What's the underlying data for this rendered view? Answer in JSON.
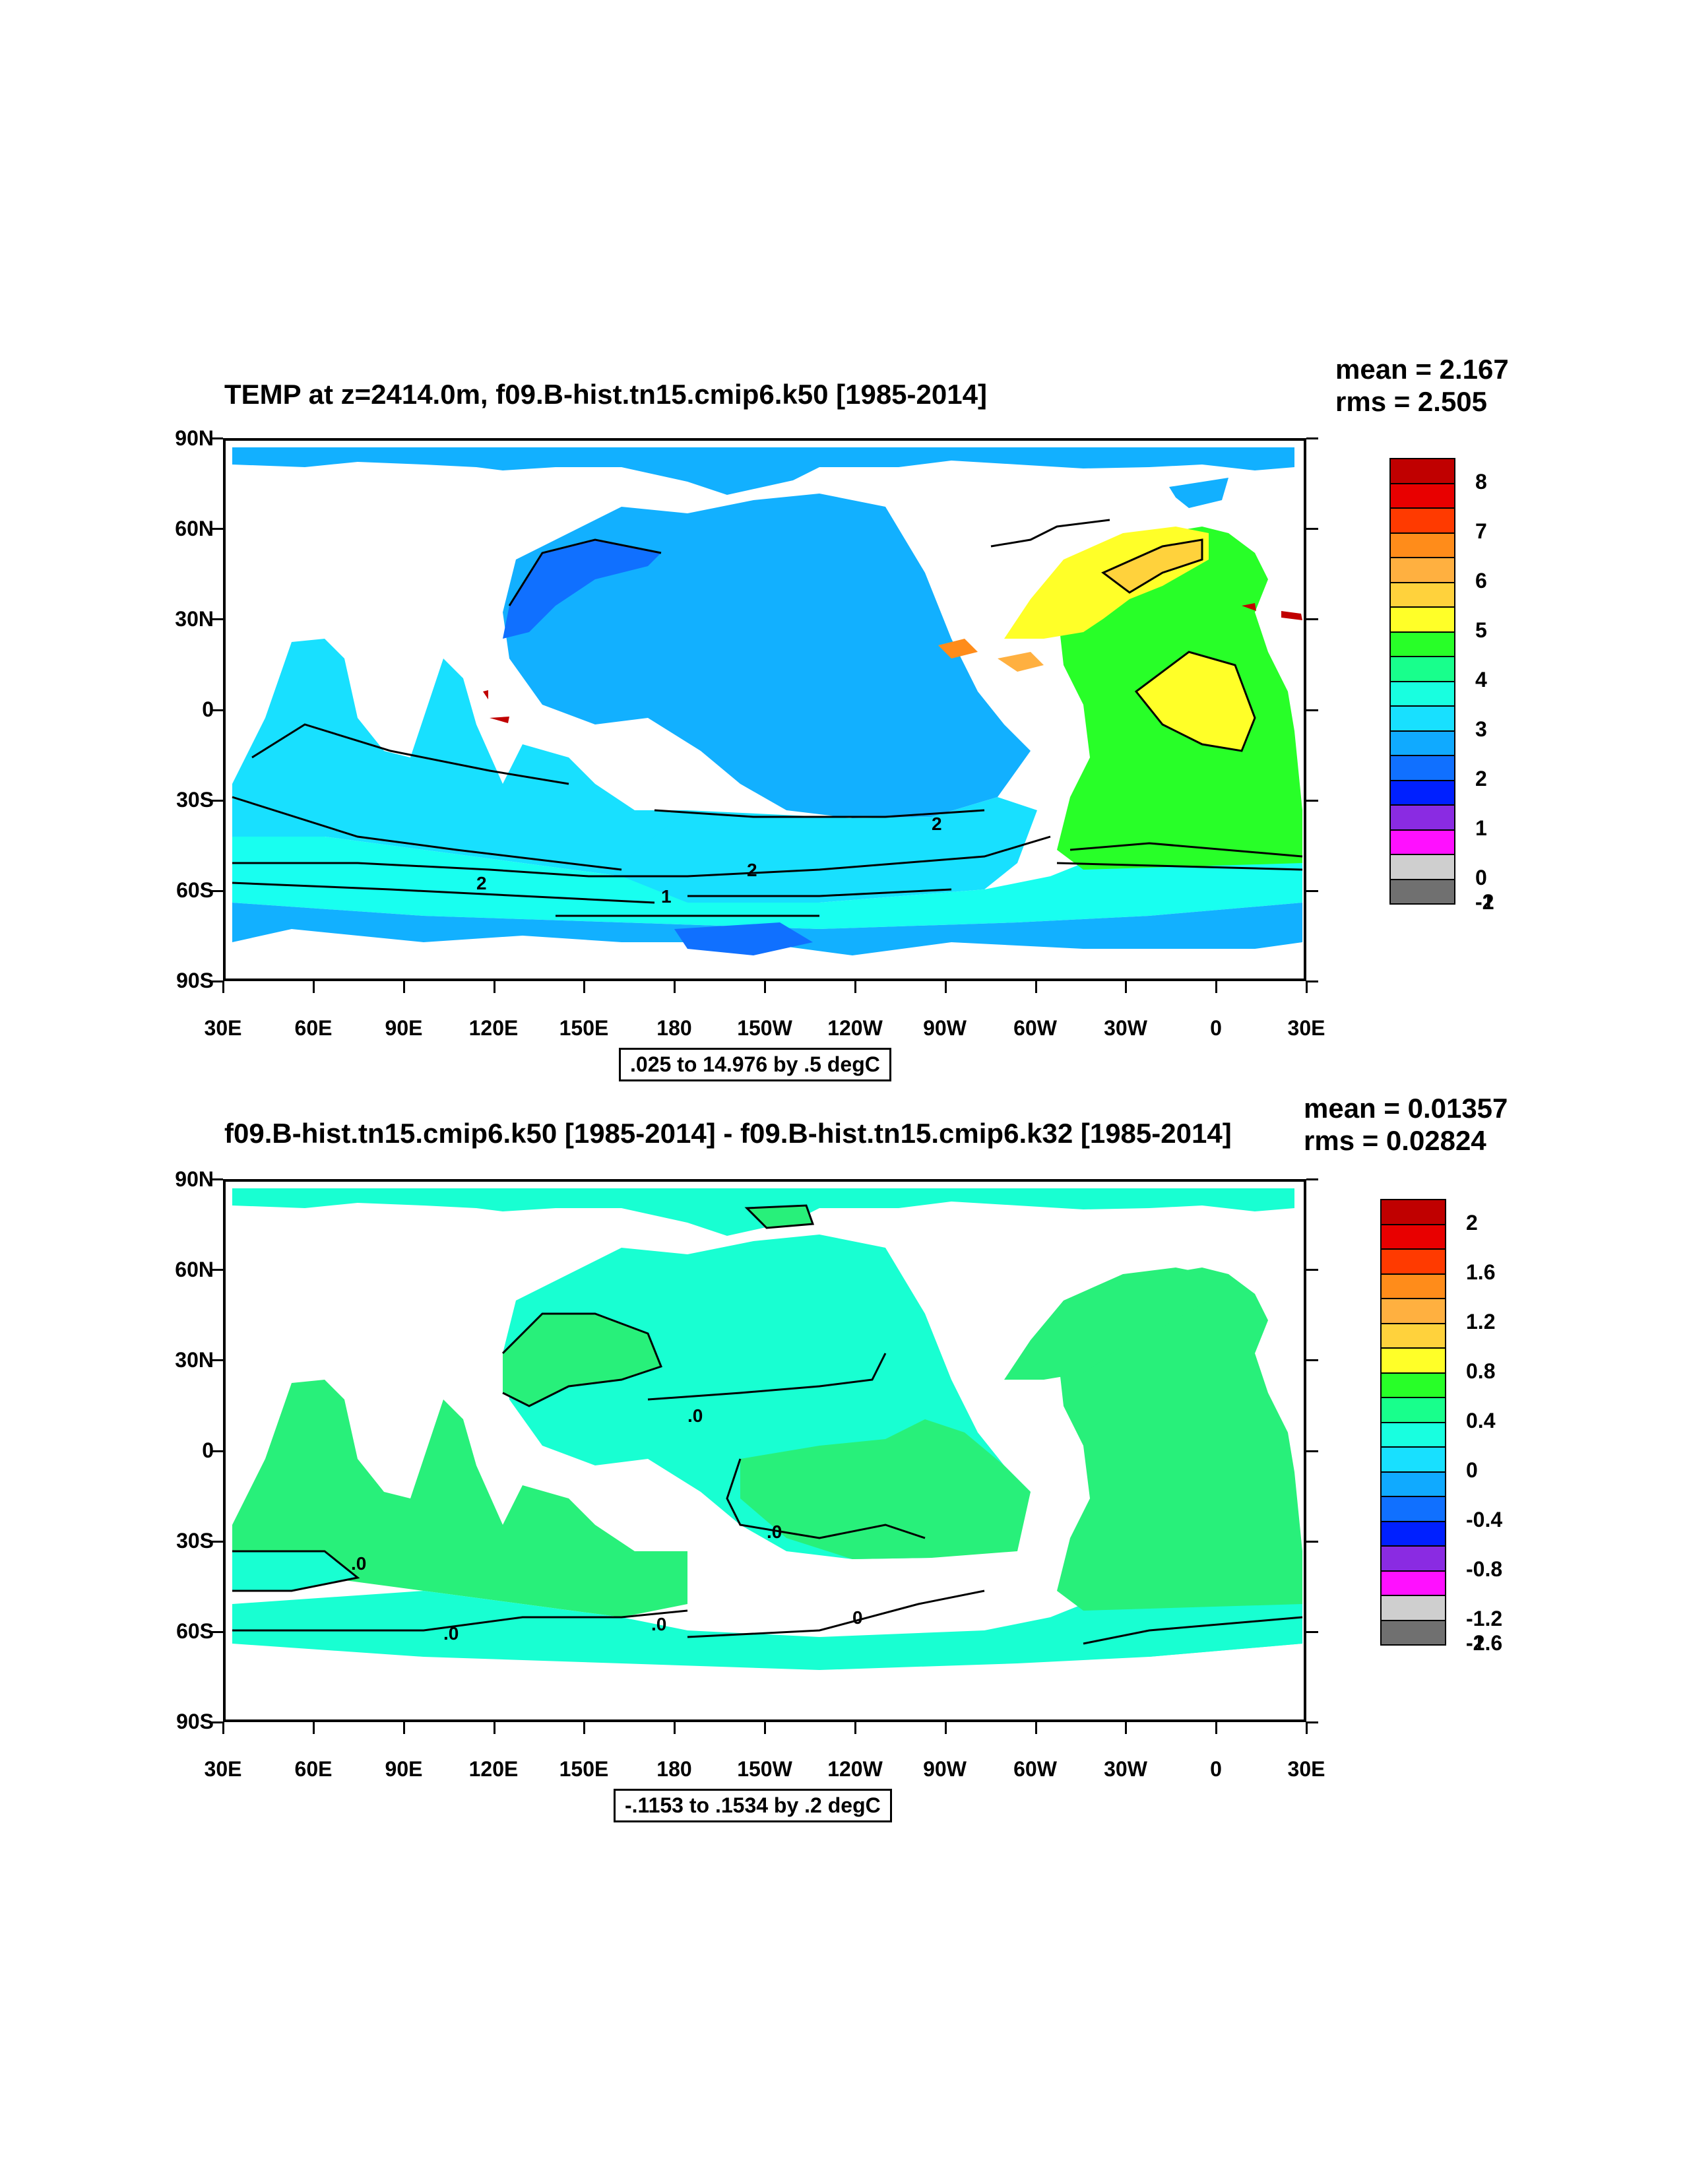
{
  "panel1": {
    "title": "TEMP at z=2414.0m, f09.B-hist.tn15.cmip6.k50 [1985-2014]",
    "mean": "mean = 2.167",
    "rms": "rms = 2.505",
    "info": ".025 to 14.976 by .5 degC",
    "colorbar": {
      "labels": [
        "8",
        "7",
        "6",
        "5",
        "4",
        "3",
        "2",
        "1",
        "0",
        "-1",
        "-2"
      ],
      "colors": [
        "#c00000",
        "#e80000",
        "#ff3a00",
        "#ff8c1a",
        "#ffb040",
        "#ffd23c",
        "#ffff28",
        "#28ff28",
        "#18ff8c",
        "#18ffe0",
        "#18e0ff",
        "#10aaff",
        "#1070ff",
        "#0020ff",
        "#8a2be2",
        "#ff10ff",
        "#cfcfcf",
        "#707070"
      ]
    },
    "contour_labels": [
      "2",
      "2",
      "2",
      "1"
    ]
  },
  "panel2": {
    "title": "f09.B-hist.tn15.cmip6.k50 [1985-2014] - f09.B-hist.tn15.cmip6.k32 [1985-2014]",
    "mean": "mean = 0.01357",
    "rms": "rms = 0.02824",
    "info": "-.1153 to .1534 by .2 degC",
    "colorbar": {
      "labels": [
        "2",
        "1.6",
        "1.2",
        "0.8",
        "0.4",
        "0",
        "-0.4",
        "-0.8",
        "-1.2",
        "-1.6",
        "-2"
      ],
      "colors": [
        "#c00000",
        "#e80000",
        "#ff3a00",
        "#ff8c1a",
        "#ffb040",
        "#ffd23c",
        "#ffff28",
        "#28ff28",
        "#18ff8c",
        "#18ffe0",
        "#18e0ff",
        "#10aaff",
        "#1070ff",
        "#0020ff",
        "#8a2be2",
        "#ff10ff",
        "#cfcfcf",
        "#707070"
      ]
    },
    "contour_labels": [
      ".0",
      ".0",
      ".0",
      ".0",
      ".0",
      "0",
      ".0"
    ]
  },
  "axes": {
    "y_labels": [
      "90N",
      "60N",
      "30N",
      "0",
      "30S",
      "60S",
      "90S"
    ],
    "x_labels": [
      "30E",
      "60E",
      "90E",
      "120E",
      "150E",
      "180",
      "150W",
      "120W",
      "90W",
      "60W",
      "30W",
      "0",
      "30E"
    ]
  },
  "map_colors": {
    "p1_ocean_main": "#12b0ff",
    "p1_ocean_light": "#18e0ff",
    "p1_ocean_cyan": "#18fff0",
    "p1_deep": "#1070ff",
    "p1_green": "#28ff28",
    "p1_yellow": "#ffff28",
    "p1_orange": "#ffd23c",
    "p2_cyan": "#18ffd2",
    "p2_green": "#28f07a"
  }
}
